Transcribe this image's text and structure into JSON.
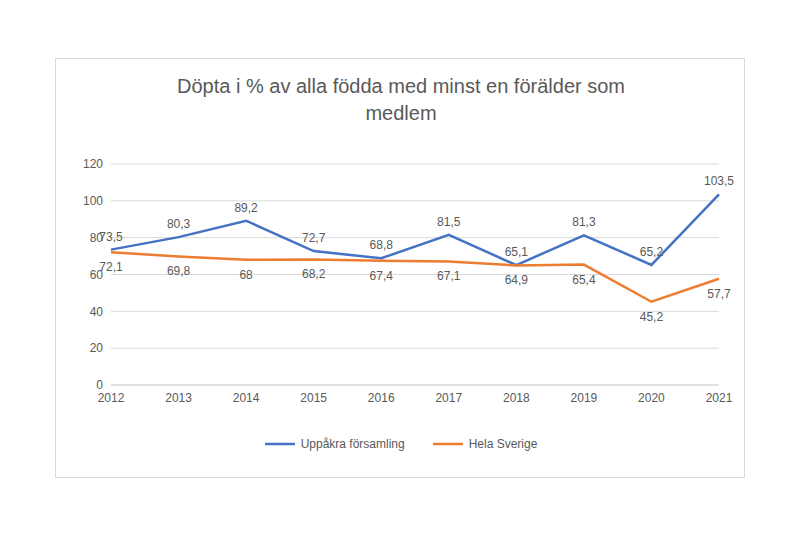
{
  "chart_data": {
    "type": "line",
    "title": "Döpta i % av alla födda med minst en förälder som medlem",
    "categories": [
      "2012",
      "2013",
      "2014",
      "2015",
      "2016",
      "2017",
      "2018",
      "2019",
      "2020",
      "2021"
    ],
    "series": [
      {
        "name": "Uppåkra församling",
        "color": "#4472c4",
        "values": [
          73.5,
          80.3,
          89.2,
          72.7,
          68.8,
          81.5,
          65.1,
          81.3,
          65.2,
          103.5
        ],
        "value_labels": [
          "73,5",
          "80,3",
          "89,2",
          "72,7",
          "68,8",
          "81,5",
          "65,1",
          "81,3",
          "65,2",
          "103,5"
        ]
      },
      {
        "name": "Hela Sverige",
        "color": "#ed7d31",
        "values": [
          72.1,
          69.8,
          68,
          68.2,
          67.4,
          67.1,
          64.9,
          65.4,
          45.2,
          57.7
        ],
        "value_labels": [
          "72,1",
          "69,8",
          "68",
          "68,2",
          "67,4",
          "67,1",
          "64,9",
          "65,4",
          "45,2",
          "57,7"
        ]
      }
    ],
    "ylim": [
      0,
      120
    ],
    "yticks": [
      0,
      20,
      40,
      60,
      80,
      100,
      120
    ],
    "grid": true,
    "legend": "bottom",
    "data_labels": true
  }
}
